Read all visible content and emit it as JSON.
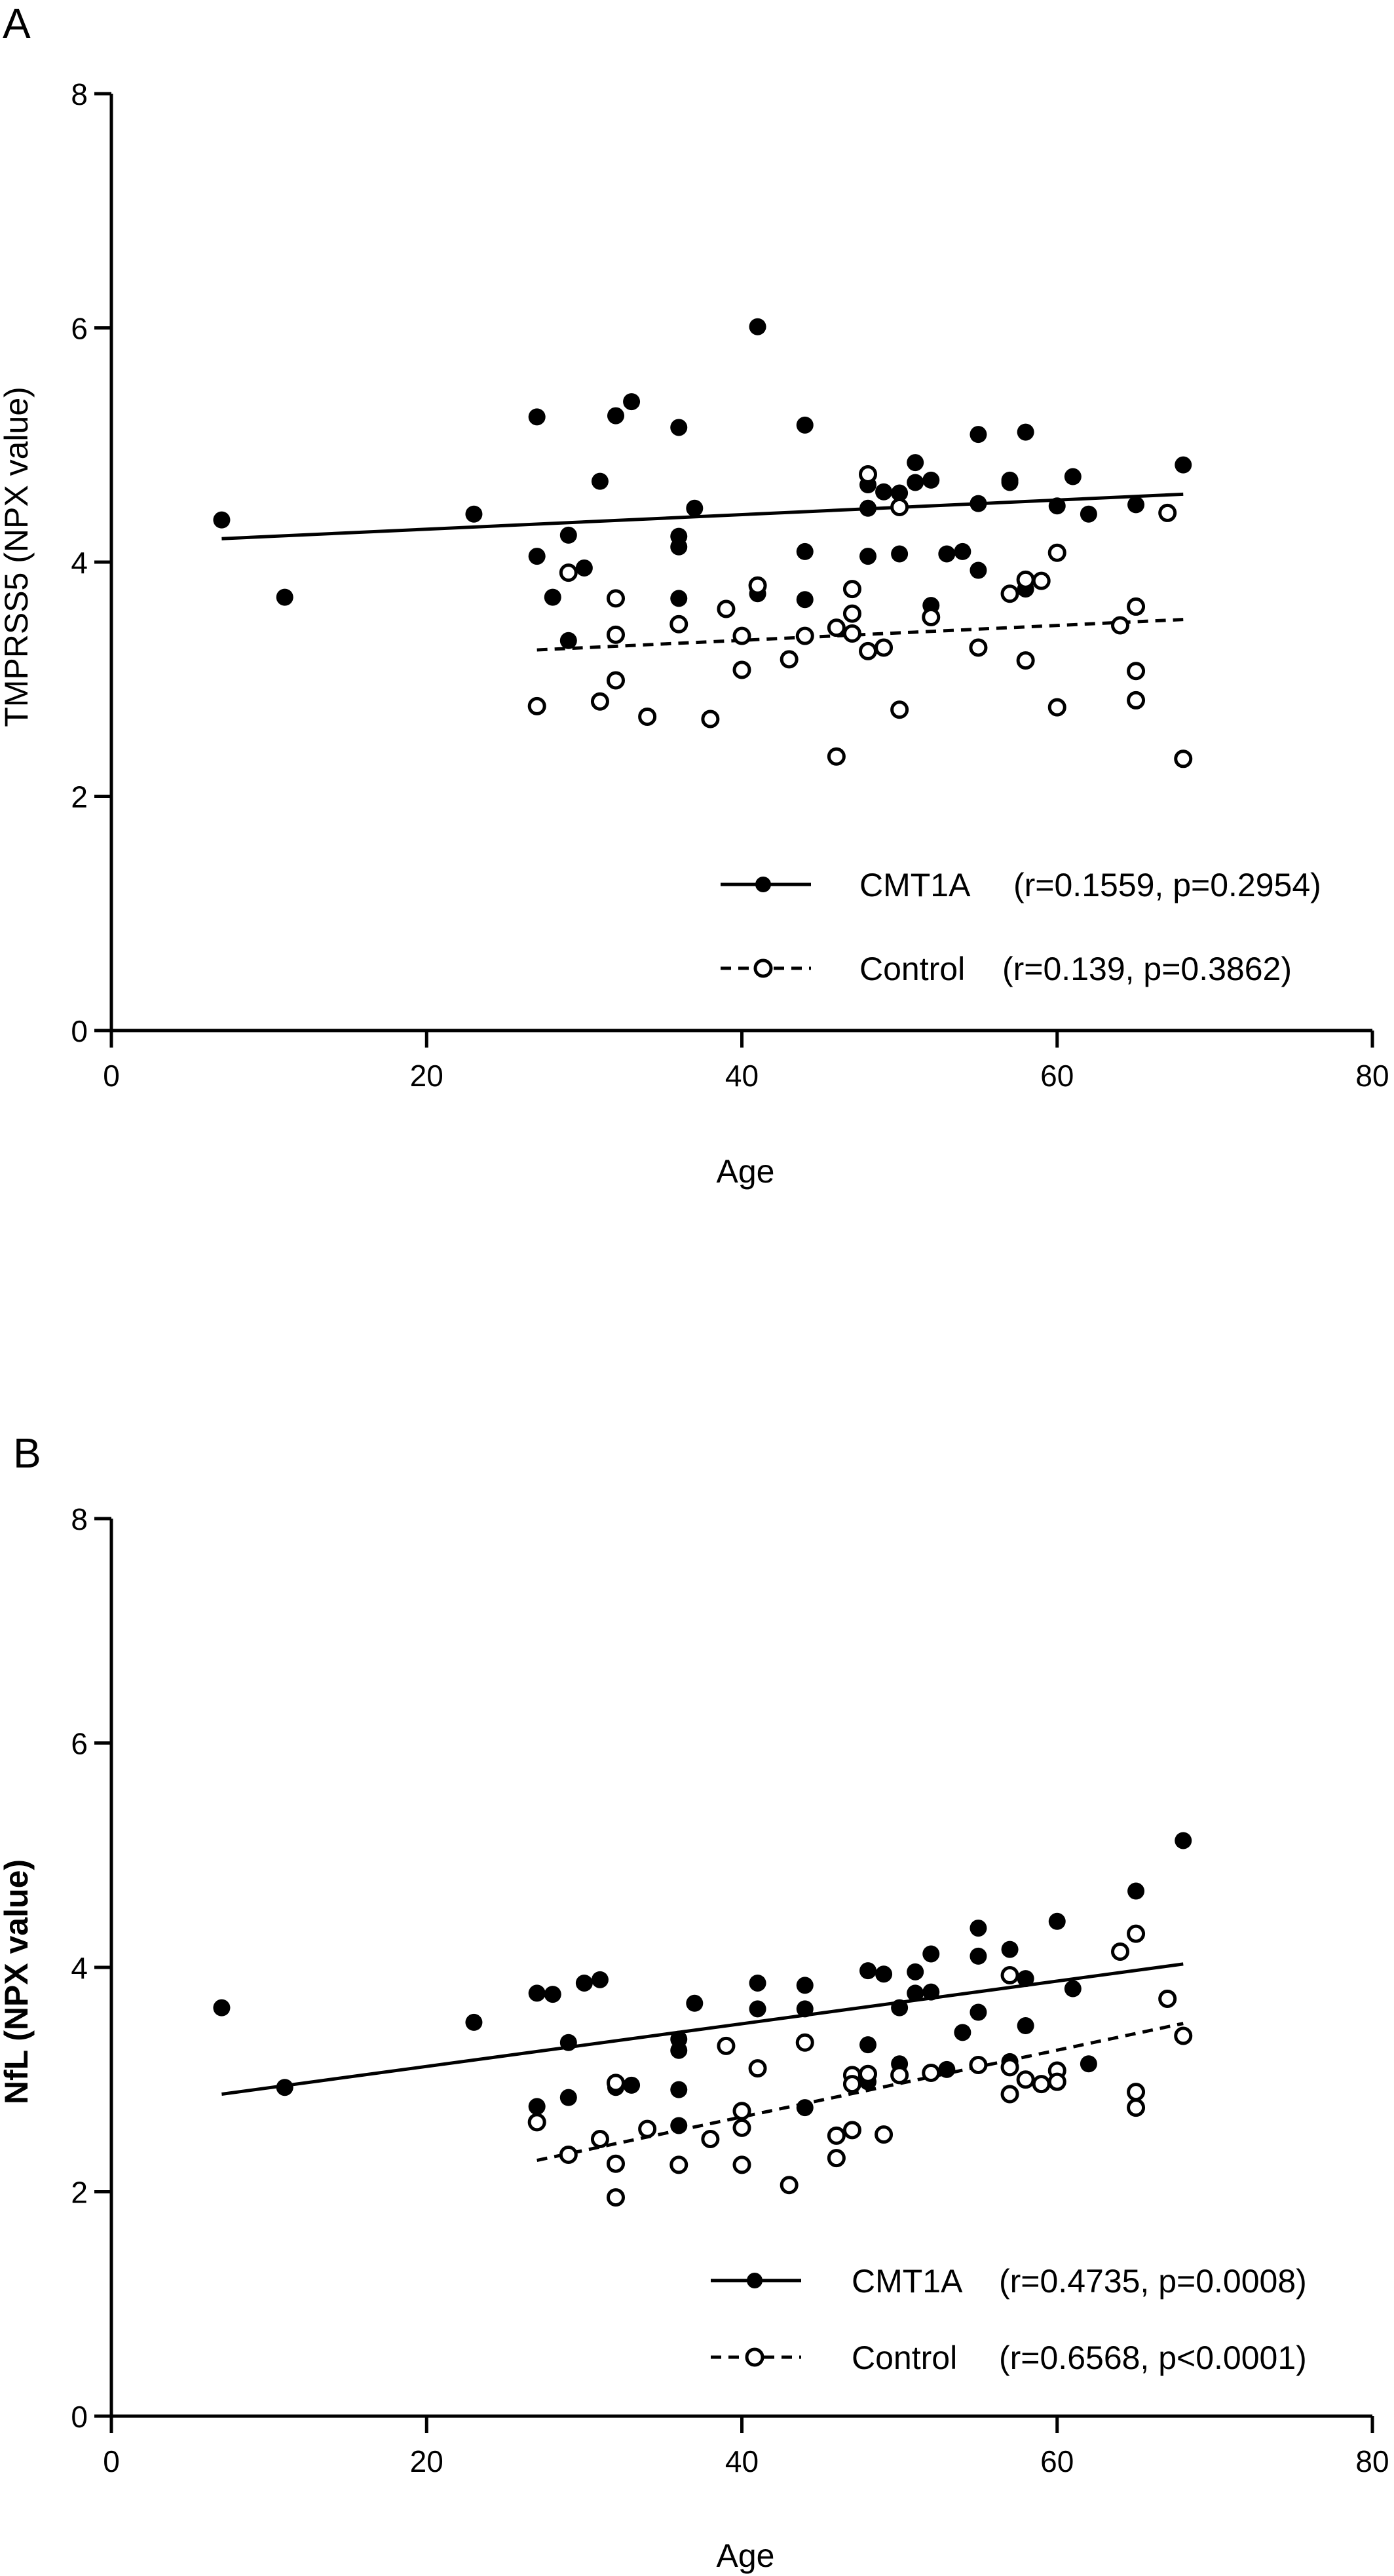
{
  "chart_data": [
    {
      "panel_label": "A",
      "type": "scatter",
      "xlabel": "Age",
      "ylabel": "TMPRSS5 (NPX value)",
      "xlim": [
        0,
        80
      ],
      "ylim": [
        0,
        8
      ],
      "xticks": [
        0,
        20,
        40,
        60,
        80
      ],
      "yticks": [
        0,
        2,
        4,
        6,
        8
      ],
      "legend_position": "bottom-right",
      "series": [
        {
          "name": "CMT1A",
          "stats": "(r=0.1559, p=0.2954)",
          "marker": "filled-circle",
          "line_style": "solid",
          "fit": {
            "x": [
              7,
              68
            ],
            "y": [
              4.2,
              4.58
            ]
          },
          "points": [
            [
              7,
              4.36
            ],
            [
              11,
              3.7
            ],
            [
              23,
              4.41
            ],
            [
              27,
              5.24
            ],
            [
              27,
              4.05
            ],
            [
              28,
              3.7
            ],
            [
              29,
              4.23
            ],
            [
              29,
              3.33
            ],
            [
              30,
              3.95
            ],
            [
              31,
              4.69
            ],
            [
              32,
              5.25
            ],
            [
              33,
              5.37
            ],
            [
              36,
              5.15
            ],
            [
              36,
              4.22
            ],
            [
              36,
              4.13
            ],
            [
              36,
              3.69
            ],
            [
              37,
              4.46
            ],
            [
              41,
              6.01
            ],
            [
              41,
              3.73
            ],
            [
              44,
              5.17
            ],
            [
              44,
              4.09
            ],
            [
              44,
              3.68
            ],
            [
              48,
              4.46
            ],
            [
              48,
              4.66
            ],
            [
              48,
              4.05
            ],
            [
              49,
              4.6
            ],
            [
              50,
              4.59
            ],
            [
              50,
              4.07
            ],
            [
              51,
              4.85
            ],
            [
              51,
              4.68
            ],
            [
              52,
              4.7
            ],
            [
              52,
              3.63
            ],
            [
              53,
              4.07
            ],
            [
              54,
              4.09
            ],
            [
              55,
              5.09
            ],
            [
              55,
              4.5
            ],
            [
              55,
              3.93
            ],
            [
              57,
              4.7
            ],
            [
              57,
              4.68
            ],
            [
              58,
              5.11
            ],
            [
              58,
              3.77
            ],
            [
              60,
              4.48
            ],
            [
              61,
              4.73
            ],
            [
              62,
              4.41
            ],
            [
              65,
              4.49
            ],
            [
              68,
              4.83
            ]
          ]
        },
        {
          "name": "Control",
          "stats": "(r=0.139, p=0.3862)",
          "marker": "open-circle",
          "line_style": "dashed",
          "fit": {
            "x": [
              27,
              68
            ],
            "y": [
              3.25,
              3.51
            ]
          },
          "points": [
            [
              27,
              2.77
            ],
            [
              29,
              3.91
            ],
            [
              31,
              2.81
            ],
            [
              32,
              3.69
            ],
            [
              32,
              3.38
            ],
            [
              32,
              2.99
            ],
            [
              34,
              2.68
            ],
            [
              36,
              3.47
            ],
            [
              38,
              2.66
            ],
            [
              39,
              3.6
            ],
            [
              40,
              3.37
            ],
            [
              40,
              3.08
            ],
            [
              41,
              3.8
            ],
            [
              43,
              3.17
            ],
            [
              44,
              3.37
            ],
            [
              46,
              3.44
            ],
            [
              46,
              2.34
            ],
            [
              47,
              3.77
            ],
            [
              47,
              3.56
            ],
            [
              47,
              3.39
            ],
            [
              48,
              4.75
            ],
            [
              48,
              3.24
            ],
            [
              49,
              3.27
            ],
            [
              50,
              4.47
            ],
            [
              50,
              2.74
            ],
            [
              52,
              3.53
            ],
            [
              55,
              3.27
            ],
            [
              57,
              3.73
            ],
            [
              58,
              3.85
            ],
            [
              58,
              3.16
            ],
            [
              59,
              3.84
            ],
            [
              60,
              4.08
            ],
            [
              60,
              2.76
            ],
            [
              64,
              3.46
            ],
            [
              65,
              3.62
            ],
            [
              65,
              3.07
            ],
            [
              65,
              2.82
            ],
            [
              67,
              4.42
            ],
            [
              68,
              2.32
            ]
          ]
        }
      ]
    },
    {
      "panel_label": "B",
      "type": "scatter",
      "xlabel": "Age",
      "ylabel": "NfL (NPX value)",
      "xlim": [
        0,
        80
      ],
      "ylim": [
        0,
        8
      ],
      "xticks": [
        0,
        20,
        40,
        60,
        80
      ],
      "yticks": [
        0,
        2,
        4,
        6,
        8
      ],
      "legend_position": "bottom-right",
      "series": [
        {
          "name": "CMT1A",
          "stats": "(r=0.4735, p=0.0008)",
          "marker": "filled-circle",
          "line_style": "solid",
          "fit": {
            "x": [
              7,
              68
            ],
            "y": [
              2.87,
              4.03
            ]
          },
          "points": [
            [
              7,
              3.64
            ],
            [
              11,
              2.93
            ],
            [
              23,
              3.51
            ],
            [
              27,
              3.77
            ],
            [
              27,
              2.76
            ],
            [
              28,
              3.76
            ],
            [
              29,
              3.33
            ],
            [
              29,
              2.84
            ],
            [
              30,
              3.86
            ],
            [
              31,
              3.89
            ],
            [
              32,
              2.93
            ],
            [
              33,
              2.95
            ],
            [
              36,
              3.36
            ],
            [
              36,
              3.26
            ],
            [
              36,
              2.91
            ],
            [
              36,
              2.59
            ],
            [
              37,
              3.68
            ],
            [
              41,
              3.86
            ],
            [
              41,
              3.63
            ],
            [
              44,
              3.84
            ],
            [
              44,
              3.63
            ],
            [
              44,
              2.75
            ],
            [
              48,
              3.97
            ],
            [
              48,
              3.31
            ],
            [
              48,
              2.98
            ],
            [
              49,
              3.94
            ],
            [
              50,
              3.64
            ],
            [
              50,
              3.14
            ],
            [
              51,
              3.96
            ],
            [
              51,
              3.77
            ],
            [
              52,
              4.12
            ],
            [
              52,
              3.78
            ],
            [
              53,
              3.09
            ],
            [
              54,
              3.42
            ],
            [
              55,
              4.35
            ],
            [
              55,
              4.1
            ],
            [
              55,
              3.6
            ],
            [
              57,
              4.16
            ],
            [
              57,
              3.16
            ],
            [
              58,
              3.9
            ],
            [
              58,
              3.48
            ],
            [
              60,
              4.41
            ],
            [
              61,
              3.81
            ],
            [
              62,
              3.14
            ],
            [
              65,
              4.68
            ],
            [
              68,
              5.13
            ]
          ]
        },
        {
          "name": "Control",
          "stats": "(r=0.6568, p<0.0001)",
          "marker": "open-circle",
          "line_style": "dashed",
          "fit": {
            "x": [
              27,
              68
            ],
            "y": [
              2.28,
              3.5
            ]
          },
          "points": [
            [
              27,
              2.62
            ],
            [
              29,
              2.33
            ],
            [
              31,
              2.47
            ],
            [
              32,
              2.97
            ],
            [
              32,
              2.25
            ],
            [
              32,
              1.95
            ],
            [
              34,
              2.56
            ],
            [
              36,
              2.24
            ],
            [
              38,
              2.47
            ],
            [
              39,
              3.3
            ],
            [
              40,
              2.72
            ],
            [
              40,
              2.57
            ],
            [
              40,
              2.24
            ],
            [
              41,
              3.1
            ],
            [
              43,
              2.06
            ],
            [
              44,
              3.33
            ],
            [
              46,
              2.5
            ],
            [
              46,
              2.3
            ],
            [
              47,
              3.04
            ],
            [
              47,
              2.96
            ],
            [
              47,
              2.55
            ],
            [
              48,
              3.05
            ],
            [
              49,
              2.51
            ],
            [
              50,
              3.04
            ],
            [
              52,
              3.06
            ],
            [
              55,
              3.13
            ],
            [
              57,
              3.93
            ],
            [
              57,
              3.11
            ],
            [
              57,
              2.87
            ],
            [
              58,
              3.0
            ],
            [
              59,
              2.96
            ],
            [
              60,
              3.08
            ],
            [
              60,
              2.98
            ],
            [
              64,
              4.14
            ],
            [
              65,
              4.3
            ],
            [
              65,
              2.89
            ],
            [
              65,
              2.75
            ],
            [
              67,
              3.72
            ],
            [
              68,
              3.39
            ]
          ]
        }
      ]
    }
  ]
}
